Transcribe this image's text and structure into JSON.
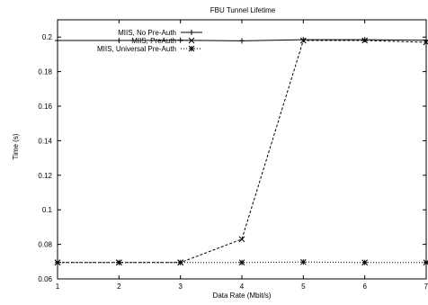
{
  "chart_data": {
    "type": "line",
    "title": "FBU Tunnel Lifetime",
    "xlabel": "Data Rate (Mbit/s)",
    "ylabel": "Time (s)",
    "xlim": [
      1,
      7
    ],
    "ylim": [
      0.06,
      0.21
    ],
    "xticks": [
      1,
      2,
      3,
      4,
      5,
      6,
      7
    ],
    "yticks": [
      0.06,
      0.08,
      0.1,
      0.12,
      0.14,
      0.16,
      0.18,
      0.2
    ],
    "ytick_labels": [
      "0.06",
      "0.08",
      "0.1",
      "0.12",
      "0.14",
      "0.16",
      "0.18",
      "0.2"
    ],
    "grid": false,
    "legend_position": "top-left",
    "x": [
      1,
      2,
      3,
      4,
      5,
      6,
      7
    ],
    "series": [
      {
        "name": "MIIS, No Pre-Auth",
        "marker": "plus",
        "dash": "solid",
        "values": [
          0.198,
          0.198,
          0.1982,
          0.1978,
          0.1985,
          0.1985,
          0.1982
        ]
      },
      {
        "name": "MIIS, PreAuth",
        "marker": "cross",
        "dash": "dashed",
        "values": [
          0.0695,
          0.0695,
          0.0695,
          0.083,
          0.198,
          0.198,
          0.197
        ]
      },
      {
        "name": "MIIS, Universal Pre-Auth",
        "marker": "star",
        "dash": "dotted",
        "values": [
          0.0695,
          0.0695,
          0.0695,
          0.0695,
          0.0698,
          0.0695,
          0.0695
        ]
      }
    ]
  }
}
